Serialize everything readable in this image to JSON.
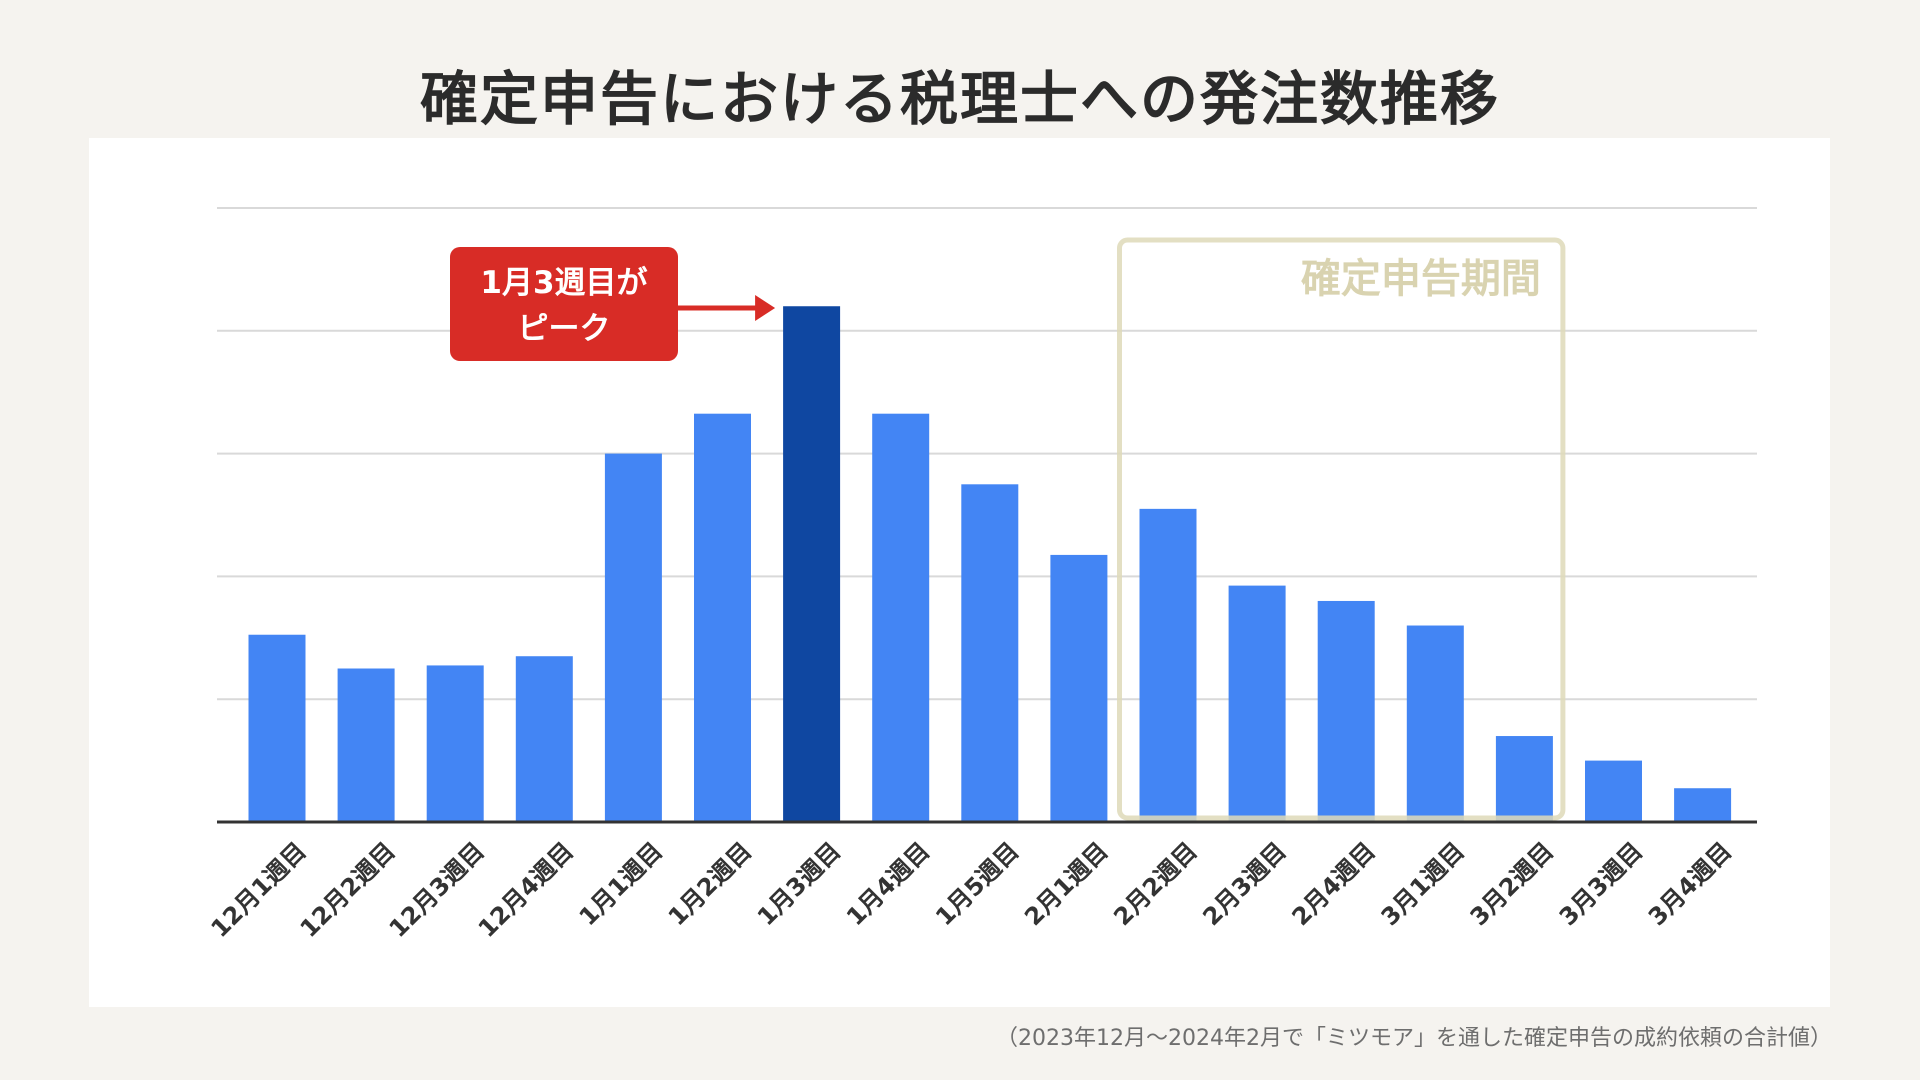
{
  "page": {
    "title": "確定申告における税理士への発注数推移",
    "footnote": "（2023年12月〜2024年2月で「ミツモア」を通した確定申告の成約依頼の合計値）"
  },
  "chart_data": {
    "type": "bar",
    "title": "確定申告における税理士への発注数推移",
    "xlabel": "",
    "ylabel": "",
    "y_tick_labels_shown": false,
    "grid": true,
    "ylim": [
      0,
      100
    ],
    "categories": [
      "12月1週目",
      "12月2週目",
      "12月3週目",
      "12月4週目",
      "1月1週目",
      "1月2週目",
      "1月3週目",
      "1月4週目",
      "1月5週目",
      "2月1週目",
      "2月2週目",
      "2月3週目",
      "2月4週目",
      "3月1週目",
      "3月2週目",
      "3月3週目",
      "3月4週目"
    ],
    "values": [
      30.5,
      25,
      25.5,
      27,
      60,
      66.5,
      84,
      66.5,
      55,
      43.5,
      51,
      38.5,
      36,
      32,
      14,
      10,
      5.5
    ],
    "highlight_index": 6,
    "colors": {
      "bar": "#4385f4",
      "highlight": "#0f47a1",
      "grid": "#d9d9d9",
      "axis": "#333333",
      "callout": "#d82c26",
      "region": "#ded9b8",
      "region_text": "#d9d3b0"
    },
    "annotations": {
      "callout_line1": "1月3週目が",
      "callout_line2": "ピーク",
      "region_label": "確定申告期間",
      "region_from": "2月2週目",
      "region_to": "3月2週目"
    }
  }
}
